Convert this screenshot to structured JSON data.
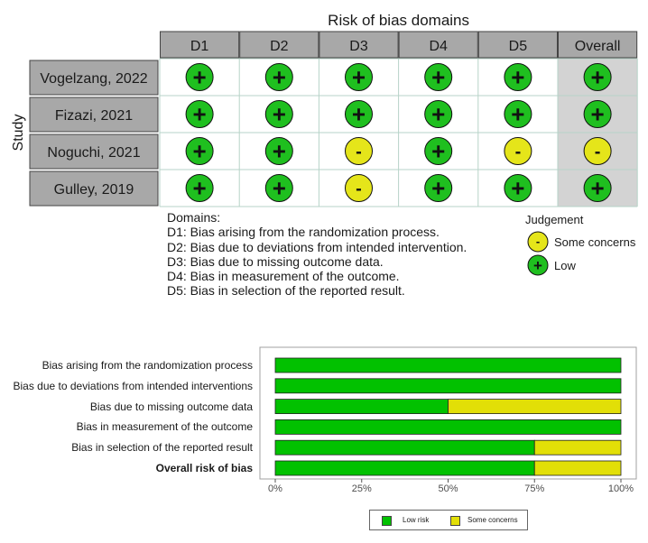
{
  "rob": {
    "title": "Risk of bias domains",
    "y_axis_label": "Study",
    "columns": [
      "D1",
      "D2",
      "D3",
      "D4",
      "D5",
      "Overall"
    ],
    "studies": [
      {
        "name": "Vogelzang, 2022",
        "judgements": [
          "low",
          "low",
          "low",
          "low",
          "low",
          "low"
        ]
      },
      {
        "name": "Fizazi, 2021",
        "judgements": [
          "low",
          "low",
          "low",
          "low",
          "low",
          "low"
        ]
      },
      {
        "name": "Noguchi, 2021",
        "judgements": [
          "low",
          "low",
          "some",
          "low",
          "some",
          "some"
        ]
      },
      {
        "name": "Gulley, 2019",
        "judgements": [
          "low",
          "low",
          "some",
          "low",
          "low",
          "low"
        ]
      }
    ],
    "symbols": {
      "low": "+",
      "some": "-"
    },
    "colors": {
      "low": "#1fbf1f",
      "some": "#e5e51a",
      "header": "#a8a8a8",
      "study": "#a8a8a8",
      "overall_bg": "#d3d3d3"
    },
    "domains_title": "Domains:",
    "domains": [
      "D1: Bias arising from the randomization process.",
      "D2: Bias due to deviations from intended intervention.",
      "D3: Bias due to missing outcome data.",
      "D4: Bias in measurement of the outcome.",
      "D5: Bias in selection of the reported result."
    ],
    "legend_title": "Judgement",
    "legend": [
      {
        "key": "some",
        "label": "Some concerns"
      },
      {
        "key": "low",
        "label": "Low"
      }
    ]
  },
  "chart_data": {
    "type": "bar",
    "orientation": "horizontal",
    "stacked": true,
    "categories": [
      "Bias arising from the randomization process",
      "Bias due to deviations from intended interventions",
      "Bias due to missing outcome data",
      "Bias in measurement of the outcome",
      "Bias in selection of the reported result",
      "Overall risk of bias"
    ],
    "bold_category": "Overall risk of bias",
    "series": [
      {
        "name": "Low risk",
        "color": "#02c100",
        "values": [
          100,
          100,
          50,
          100,
          75,
          75
        ]
      },
      {
        "name": "Some concerns",
        "color": "#e2df07",
        "values": [
          0,
          0,
          50,
          0,
          25,
          25
        ]
      }
    ],
    "xlim": [
      0,
      100
    ],
    "xticks": [
      "0%",
      "25%",
      "50%",
      "75%",
      "100%"
    ],
    "legend_position": "bottom"
  }
}
